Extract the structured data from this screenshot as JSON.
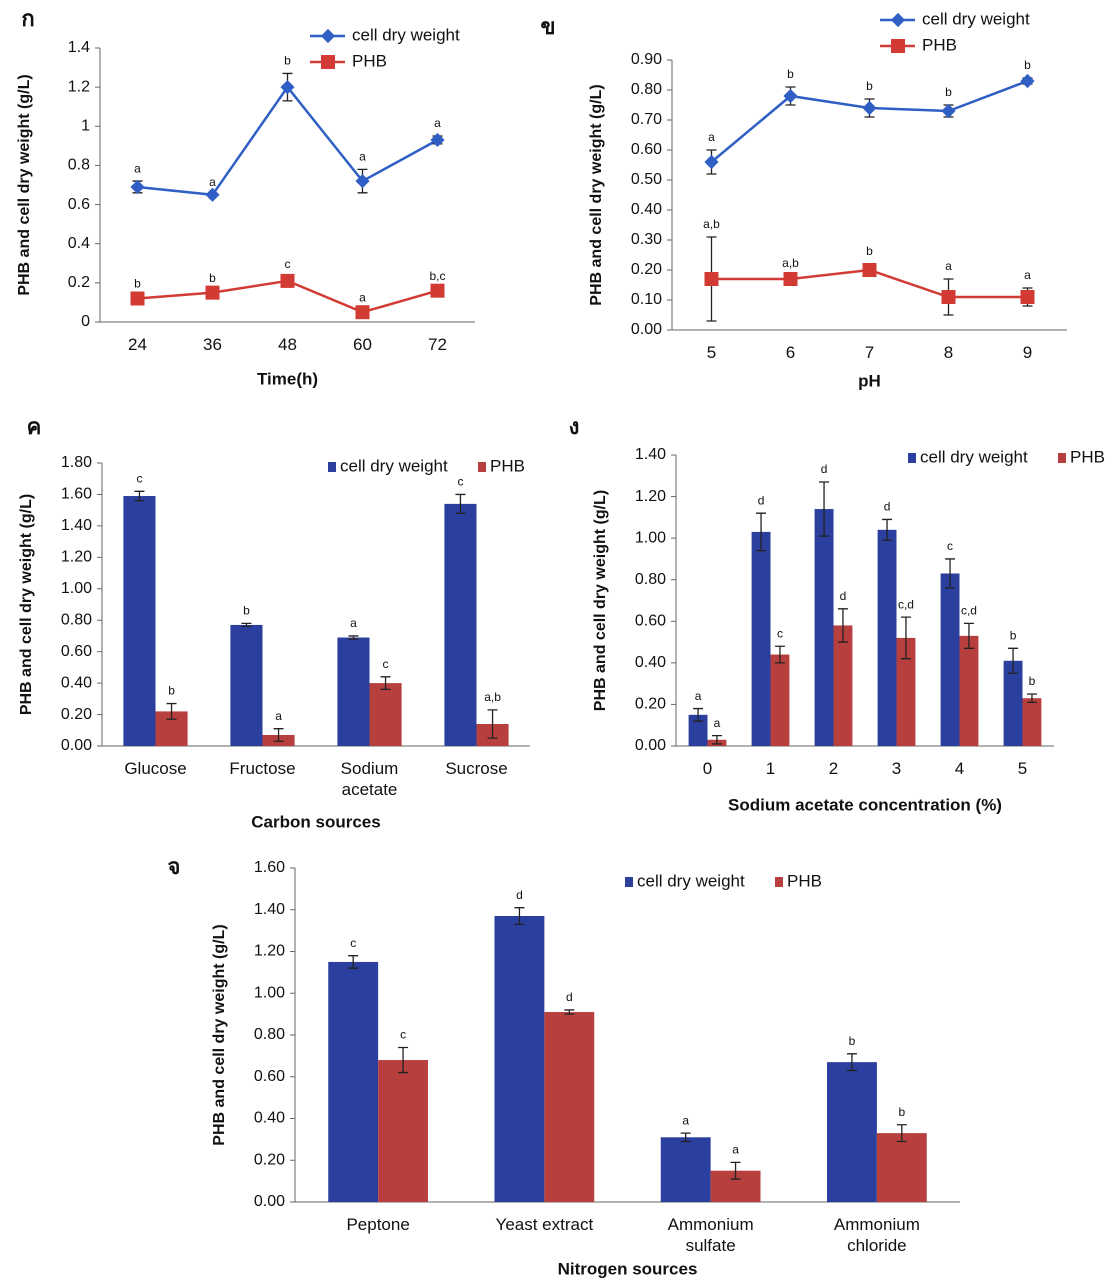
{
  "chart_data": [
    {
      "type": "line",
      "panel": "ก",
      "xlabel": "Time(h)",
      "ylabel": "PHB and cell dry weight (g/L)",
      "categories": [
        "24",
        "36",
        "48",
        "60",
        "72"
      ],
      "series": [
        {
          "name": "cell dry weight",
          "color": "#2f5fc4",
          "values": [
            0.69,
            0.65,
            1.2,
            0.72,
            0.93
          ],
          "errors": [
            0.03,
            0,
            0.07,
            0.06,
            0.02
          ],
          "labels": [
            "a",
            "a",
            "b",
            "a",
            "a"
          ]
        },
        {
          "name": "PHB",
          "color": "#d23a34",
          "values": [
            0.12,
            0.15,
            0.21,
            0.05,
            0.16
          ],
          "errors": [
            0.01,
            0.01,
            0.02,
            0.01,
            0.01
          ],
          "labels": [
            "b",
            "b",
            "c",
            "a",
            "b,c"
          ]
        }
      ],
      "ylim": [
        0,
        1.4
      ],
      "yticks": [
        0,
        0.2,
        0.4,
        0.6,
        0.8,
        1,
        1.2,
        1.4
      ]
    },
    {
      "type": "line",
      "panel": "ข",
      "xlabel": "pH",
      "ylabel": "PHB and cell dry weight (g/L)",
      "categories": [
        "5",
        "6",
        "7",
        "8",
        "9"
      ],
      "series": [
        {
          "name": "cell dry weight",
          "color": "#2f5fc4",
          "values": [
            0.56,
            0.78,
            0.74,
            0.73,
            0.83
          ],
          "errors": [
            0.04,
            0.03,
            0.03,
            0.02,
            0.01
          ],
          "labels": [
            "a",
            "b",
            "b",
            "b",
            "b"
          ]
        },
        {
          "name": "PHB",
          "color": "#d23a34",
          "values": [
            0.17,
            0.17,
            0.2,
            0.11,
            0.11
          ],
          "errors": [
            0.14,
            0.01,
            0.02,
            0.06,
            0.03
          ],
          "labels": [
            "a,b",
            "a,b",
            "b",
            "a",
            "a"
          ]
        }
      ],
      "ylim": [
        0,
        0.9
      ],
      "yticks": [
        {
          "value": 0,
          "label": "0.00"
        },
        {
          "value": 0.1,
          "label": "0.10"
        },
        {
          "value": 0.2,
          "label": "0.20"
        },
        {
          "value": 0.3,
          "label": "0.30"
        },
        {
          "value": 0.4,
          "label": "0.40"
        },
        {
          "value": 0.5,
          "label": "0.50"
        },
        {
          "value": 0.6,
          "label": "0.60"
        },
        {
          "value": 0.7,
          "label": "0.70"
        },
        {
          "value": 0.8,
          "label": "0.80"
        },
        {
          "value": 0.9,
          "label": "0.90"
        }
      ]
    },
    {
      "type": "bar",
      "panel": "ค",
      "xlabel": "Carbon sources",
      "ylabel": "PHB and cell dry weight (g/L)",
      "categories": [
        "Glucose",
        "Fructose",
        "Sodium acetate",
        "Sucrose"
      ],
      "series": [
        {
          "name": "cell dry weight",
          "color": "#2b3f9e",
          "values": [
            1.59,
            0.77,
            0.69,
            1.54
          ],
          "errors": [
            0.03,
            0.01,
            0.01,
            0.06
          ],
          "labels": [
            "c",
            "b",
            "a",
            "c"
          ]
        },
        {
          "name": "PHB",
          "color": "#b7403e",
          "values": [
            0.22,
            0.07,
            0.4,
            0.14
          ],
          "errors": [
            0.05,
            0.04,
            0.04,
            0.09
          ],
          "labels": [
            "b",
            "a",
            "c",
            "a,b"
          ]
        }
      ],
      "ylim": [
        0,
        1.8
      ],
      "yticks": [
        {
          "value": 0,
          "label": "0.00"
        },
        {
          "value": 0.2,
          "label": "0.20"
        },
        {
          "value": 0.4,
          "label": "0.40"
        },
        {
          "value": 0.6,
          "label": "0.60"
        },
        {
          "value": 0.8,
          "label": "0.80"
        },
        {
          "value": 1,
          "label": "1.00"
        },
        {
          "value": 1.2,
          "label": "1.20"
        },
        {
          "value": 1.4,
          "label": "1.40"
        },
        {
          "value": 1.6,
          "label": "1.60"
        },
        {
          "value": 1.8,
          "label": "1.80"
        }
      ]
    },
    {
      "type": "bar",
      "panel": "ง",
      "xlabel": "Sodium acetate concentration (%)",
      "ylabel": "PHB and cell dry weight (g/L)",
      "categories": [
        "0",
        "1",
        "2",
        "3",
        "4",
        "5"
      ],
      "series": [
        {
          "name": "cell dry weight",
          "color": "#2b3f9e",
          "values": [
            0.15,
            1.03,
            1.14,
            1.04,
            0.83,
            0.41
          ],
          "errors": [
            0.03,
            0.09,
            0.13,
            0.05,
            0.07,
            0.06
          ],
          "labels": [
            "a",
            "d",
            "d",
            "d",
            "c",
            "b"
          ]
        },
        {
          "name": "PHB",
          "color": "#b7403e",
          "values": [
            0.03,
            0.44,
            0.58,
            0.52,
            0.53,
            0.23
          ],
          "errors": [
            0.02,
            0.04,
            0.08,
            0.1,
            0.06,
            0.02
          ],
          "labels": [
            "a",
            "c",
            "d",
            "c,d",
            "c,d",
            "b"
          ]
        }
      ],
      "ylim": [
        0,
        1.4
      ],
      "yticks": [
        {
          "value": 0,
          "label": "0.00"
        },
        {
          "value": 0.2,
          "label": "0.20"
        },
        {
          "value": 0.4,
          "label": "0.40"
        },
        {
          "value": 0.6,
          "label": "0.60"
        },
        {
          "value": 0.8,
          "label": "0.80"
        },
        {
          "value": 1,
          "label": "1.00"
        },
        {
          "value": 1.2,
          "label": "1.20"
        },
        {
          "value": 1.4,
          "label": "1.40"
        }
      ]
    },
    {
      "type": "bar",
      "panel": "จ",
      "xlabel": "Nitrogen sources",
      "ylabel": "PHB and cell dry weight (g/L)",
      "categories": [
        "Peptone",
        "Yeast extract",
        "Ammonium sulfate",
        "Ammonium chloride"
      ],
      "series": [
        {
          "name": "cell dry weight",
          "color": "#2b3f9e",
          "values": [
            1.15,
            1.37,
            0.31,
            0.67
          ],
          "errors": [
            0.03,
            0.04,
            0.02,
            0.04
          ],
          "labels": [
            "c",
            "d",
            "a",
            "b"
          ]
        },
        {
          "name": "PHB",
          "color": "#b7403e",
          "values": [
            0.68,
            0.91,
            0.15,
            0.33
          ],
          "errors": [
            0.06,
            0.01,
            0.04,
            0.04
          ],
          "labels": [
            "c",
            "d",
            "a",
            "b"
          ]
        }
      ],
      "ylim": [
        0,
        1.6
      ],
      "yticks": [
        {
          "value": 0,
          "label": "0.00"
        },
        {
          "value": 0.2,
          "label": "0.20"
        },
        {
          "value": 0.4,
          "label": "0.40"
        },
        {
          "value": 0.6,
          "label": "0.60"
        },
        {
          "value": 0.8,
          "label": "0.80"
        },
        {
          "value": 1,
          "label": "1.00"
        },
        {
          "value": 1.2,
          "label": "1.20"
        },
        {
          "value": 1.4,
          "label": "1.40"
        },
        {
          "value": 1.6,
          "label": "1.60"
        }
      ]
    }
  ]
}
